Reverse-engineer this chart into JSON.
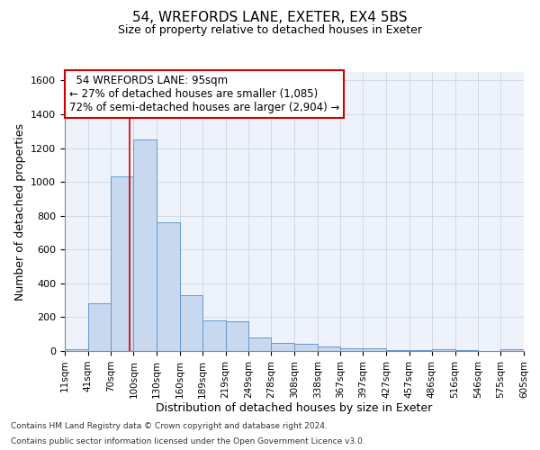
{
  "title": "54, WREFORDS LANE, EXETER, EX4 5BS",
  "subtitle": "Size of property relative to detached houses in Exeter",
  "xlabel": "Distribution of detached houses by size in Exeter",
  "ylabel": "Number of detached properties",
  "footer1": "Contains HM Land Registry data © Crown copyright and database right 2024.",
  "footer2": "Contains public sector information licensed under the Open Government Licence v3.0.",
  "annotation_title": "54 WREFORDS LANE: 95sqm",
  "annotation_line1": "← 27% of detached houses are smaller (1,085)",
  "annotation_line2": "72% of semi-detached houses are larger (2,904) →",
  "bar_color": "#c8d8ef",
  "bar_edge_color": "#6699cc",
  "vline_color": "#cc0000",
  "vline_x": 95,
  "annotation_box_color": "#cc0000",
  "background_color": "#eef2fb",
  "grid_color": "#d0d8e8",
  "bin_edges": [
    11,
    41,
    70,
    100,
    130,
    160,
    189,
    219,
    249,
    278,
    308,
    338,
    367,
    397,
    427,
    457,
    486,
    516,
    546,
    575,
    605
  ],
  "bar_heights": [
    10,
    280,
    1030,
    1250,
    760,
    330,
    180,
    175,
    80,
    50,
    40,
    25,
    18,
    15,
    5,
    5,
    10,
    5,
    0,
    10,
    0
  ],
  "ylim": [
    0,
    1650
  ],
  "yticks": [
    0,
    200,
    400,
    600,
    800,
    1000,
    1200,
    1400,
    1600
  ]
}
